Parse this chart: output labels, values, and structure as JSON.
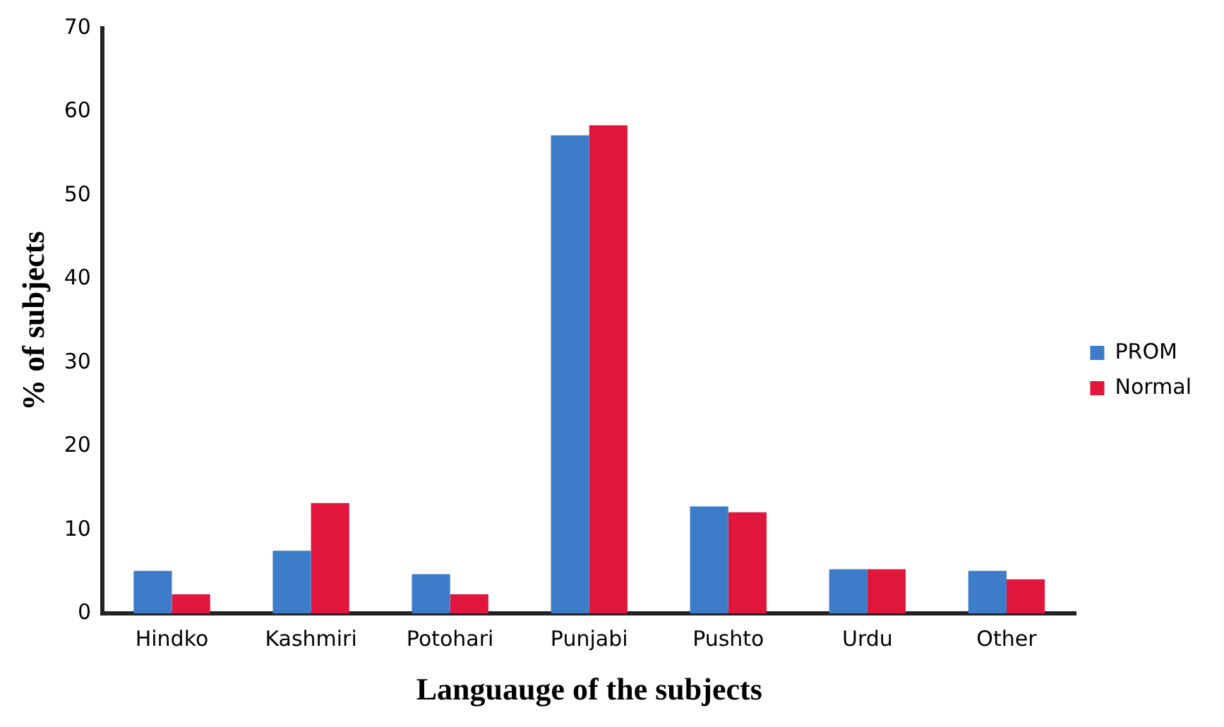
{
  "chart_data": {
    "type": "bar",
    "xlabel": "Languauge of the subjects",
    "ylabel": "% of subjects",
    "categories": [
      "Hindko",
      "Kashmiri",
      "Potohari",
      "Punjabi",
      "Pushto",
      "Urdu",
      "Other"
    ],
    "series": [
      {
        "name": "PROM",
        "color": "#3d7cc9",
        "values": [
          5.1,
          7.5,
          4.7,
          57.2,
          12.8,
          5.3,
          5.1
        ]
      },
      {
        "name": "Normal",
        "color": "#e0163c",
        "values": [
          2.3,
          13.2,
          2.3,
          58.4,
          12.1,
          5.3,
          4.1
        ]
      }
    ],
    "ylim": [
      0,
      70
    ],
    "yticks": [
      0,
      10,
      20,
      30,
      40,
      50,
      60,
      70
    ],
    "grid": false,
    "legend": "right"
  }
}
